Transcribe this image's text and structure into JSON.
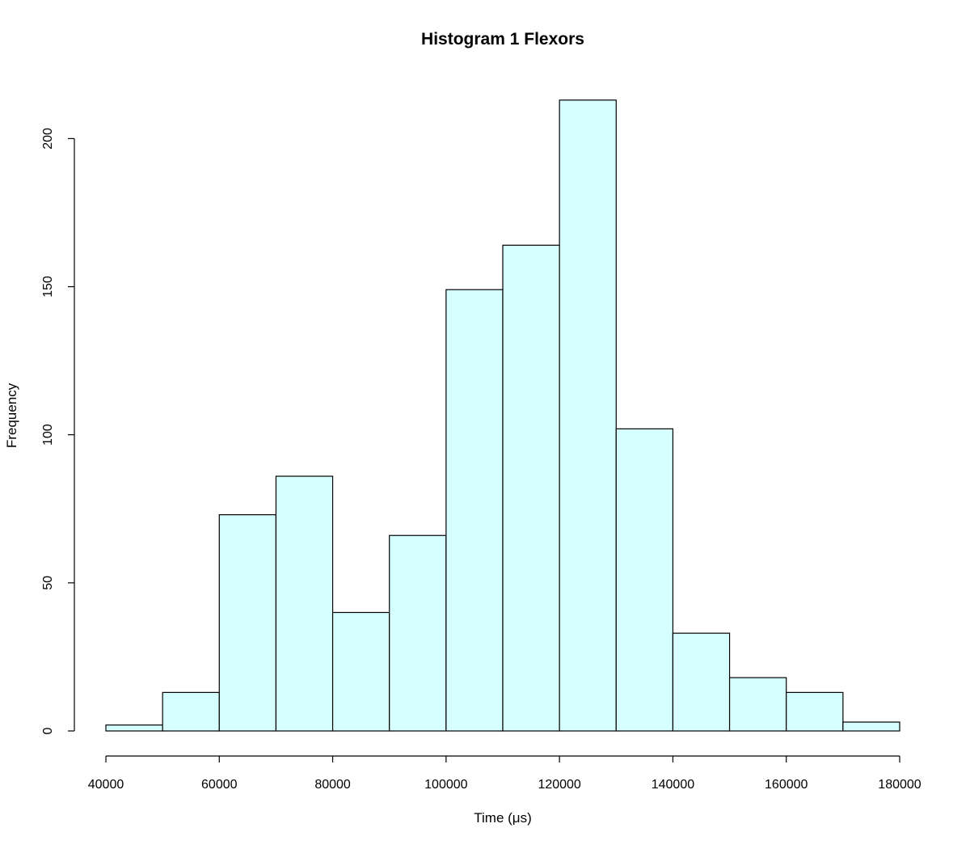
{
  "chart_data": {
    "type": "bar",
    "histogram": true,
    "title": "Histogram  1 Flexors",
    "xlabel": "Time (μs)",
    "ylabel": "Frequency",
    "bin_edges": [
      40000,
      50000,
      60000,
      70000,
      80000,
      90000,
      100000,
      110000,
      120000,
      130000,
      140000,
      150000,
      160000,
      170000,
      180000
    ],
    "values": [
      2,
      13,
      73,
      86,
      40,
      66,
      149,
      164,
      213,
      102,
      33,
      18,
      13,
      3
    ],
    "xlim": [
      40000,
      180000
    ],
    "ylim": [
      0,
      213
    ],
    "x_ticks": [
      40000,
      60000,
      80000,
      100000,
      120000,
      140000,
      160000,
      180000
    ],
    "y_ticks": [
      0,
      50,
      100,
      150,
      200
    ],
    "bar_color": "#d6ffff",
    "edge_color": "#000000",
    "grid": false,
    "legend": "none"
  }
}
